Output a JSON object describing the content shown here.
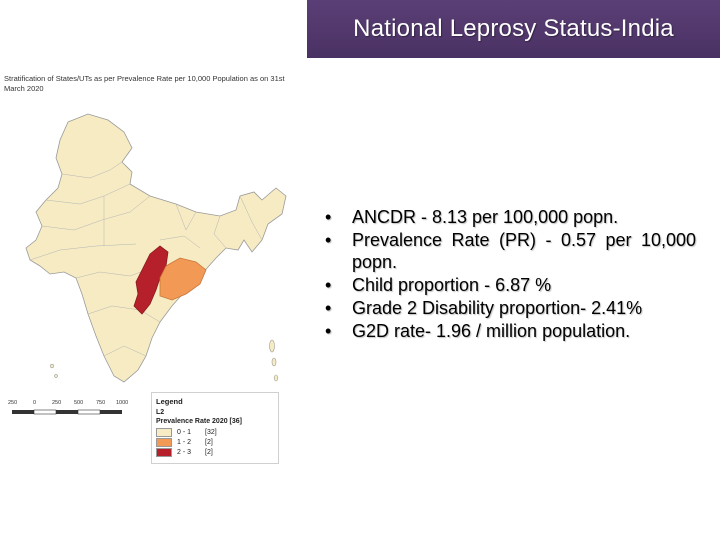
{
  "slide": {
    "title": "National Leprosy Status-India",
    "title_bg": "#4e3569"
  },
  "map": {
    "caption": "Stratification of States/UTs as per Prevalence Rate per 10,000 Population as on 31st March 2020",
    "colors": {
      "low": "#f6ebc2",
      "medium": "#f29a55",
      "high": "#b5202a",
      "border": "#9a9a9a"
    },
    "legend": {
      "title": "Legend",
      "layer": "L2",
      "field": "Prevalence Rate 2020 [36]",
      "classes": [
        {
          "range": "0 - 1",
          "count": "[32]"
        },
        {
          "range": "1 - 2",
          "count": "[2]"
        },
        {
          "range": "2 - 3",
          "count": "[2]"
        }
      ]
    },
    "scale": [
      "250",
      "0",
      "250",
      "500",
      "750",
      "1000"
    ]
  },
  "bullets": [
    {
      "marker": "•",
      "text": "ANCDR - 8.13 per 100,000 popn."
    },
    {
      "marker": "•",
      "text": "Prevalence Rate (PR) - 0.57 per 10,000 popn."
    },
    {
      "marker": "•",
      "text": "Child proportion - 6.87 %"
    },
    {
      "marker": "•",
      "text": "Grade 2 Disability proportion- 2.41%"
    },
    {
      "marker": "•",
      "text": "G2D rate- 1.96 / million population."
    }
  ]
}
